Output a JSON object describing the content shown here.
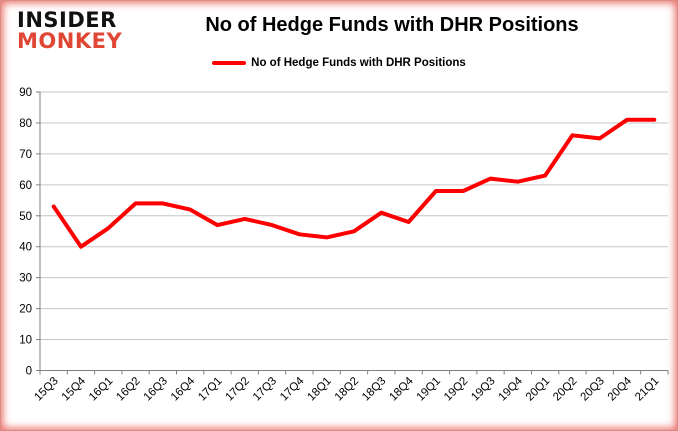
{
  "brand": {
    "line1": "INSIDER",
    "line2": "MONKEY",
    "monkey_color": "#df4734"
  },
  "header": {
    "title": "No of Hedge Funds with DHR Positions"
  },
  "legend": {
    "label": "No of Hedge Funds with DHR Positions",
    "line_color": "#ff0000"
  },
  "chart_data": {
    "type": "line",
    "title": "No of Hedge Funds with DHR Positions",
    "categories": [
      "15Q3",
      "15Q4",
      "16Q1",
      "16Q2",
      "16Q3",
      "16Q4",
      "17Q1",
      "17Q2",
      "17Q3",
      "17Q4",
      "18Q1",
      "18Q2",
      "18Q3",
      "18Q4",
      "19Q1",
      "19Q2",
      "19Q3",
      "19Q4",
      "20Q1",
      "20Q2",
      "20Q3",
      "20Q4",
      "21Q1"
    ],
    "series": [
      {
        "name": "No of Hedge Funds with DHR Positions",
        "color": "#ff0000",
        "values": [
          53,
          40,
          46,
          54,
          54,
          52,
          47,
          49,
          47,
          44,
          43,
          45,
          51,
          48,
          58,
          58,
          62,
          61,
          63,
          76,
          75,
          81,
          81
        ]
      }
    ],
    "xlabel": "",
    "ylabel": "",
    "ylim": [
      0,
      90
    ],
    "yticks": [
      0,
      10,
      20,
      30,
      40,
      50,
      60,
      70,
      80,
      90
    ],
    "grid": true,
    "legend_position": "top"
  },
  "colors": {
    "line": "#ff0000",
    "gridline": "#c6c6c6",
    "axis": "#7f7f7f",
    "tick_label": "#000000",
    "background": "#ffffff",
    "frame_glow": "#e12319"
  }
}
